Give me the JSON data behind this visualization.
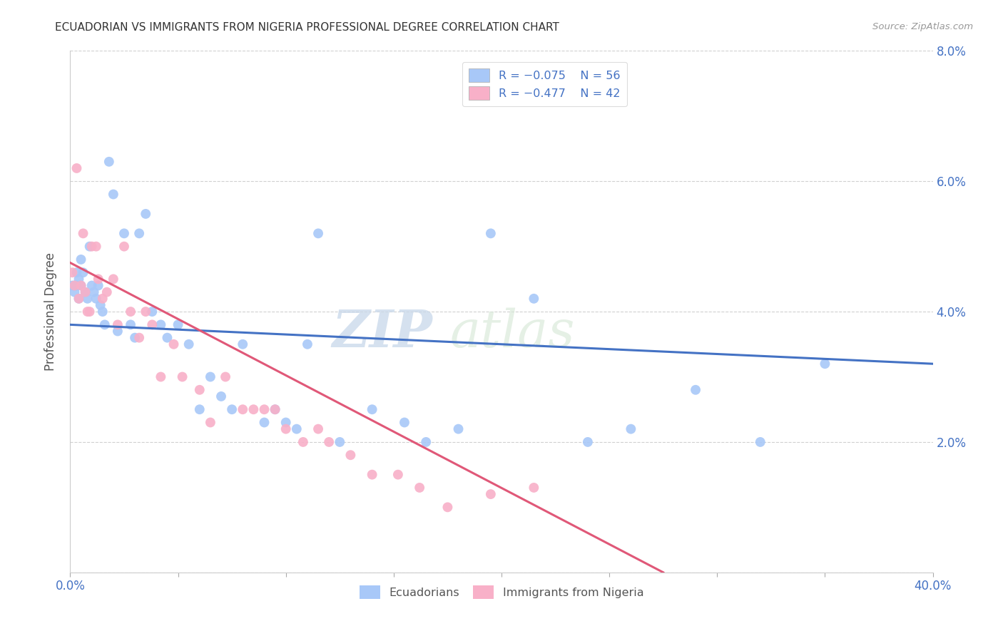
{
  "title": "ECUADORIAN VS IMMIGRANTS FROM NIGERIA PROFESSIONAL DEGREE CORRELATION CHART",
  "source": "Source: ZipAtlas.com",
  "ylabel": "Professional Degree",
  "x_min": 0.0,
  "x_max": 0.4,
  "y_min": 0.0,
  "y_max": 0.08,
  "x_ticks": [
    0.0,
    0.05,
    0.1,
    0.15,
    0.2,
    0.25,
    0.3,
    0.35,
    0.4
  ],
  "y_ticks": [
    0.0,
    0.02,
    0.04,
    0.06,
    0.08
  ],
  "ecuadorians_color": "#a8c8f8",
  "nigeria_color": "#f8b0c8",
  "trendline_blue": "#4472c4",
  "trendline_pink": "#e05878",
  "watermark_zip": "ZIP",
  "watermark_atlas": "atlas",
  "ecuadorians_x": [
    0.001,
    0.002,
    0.002,
    0.003,
    0.003,
    0.004,
    0.004,
    0.005,
    0.005,
    0.006,
    0.007,
    0.008,
    0.009,
    0.01,
    0.011,
    0.012,
    0.013,
    0.014,
    0.015,
    0.016,
    0.018,
    0.02,
    0.022,
    0.025,
    0.028,
    0.03,
    0.032,
    0.035,
    0.038,
    0.042,
    0.045,
    0.05,
    0.055,
    0.06,
    0.065,
    0.07,
    0.075,
    0.08,
    0.09,
    0.095,
    0.1,
    0.105,
    0.11,
    0.115,
    0.125,
    0.14,
    0.155,
    0.165,
    0.18,
    0.195,
    0.215,
    0.24,
    0.26,
    0.29,
    0.32,
    0.35
  ],
  "ecuadorians_y": [
    0.044,
    0.044,
    0.043,
    0.046,
    0.044,
    0.045,
    0.042,
    0.048,
    0.044,
    0.046,
    0.043,
    0.042,
    0.05,
    0.044,
    0.043,
    0.042,
    0.044,
    0.041,
    0.04,
    0.038,
    0.063,
    0.058,
    0.037,
    0.052,
    0.038,
    0.036,
    0.052,
    0.055,
    0.04,
    0.038,
    0.036,
    0.038,
    0.035,
    0.025,
    0.03,
    0.027,
    0.025,
    0.035,
    0.023,
    0.025,
    0.023,
    0.022,
    0.035,
    0.052,
    0.02,
    0.025,
    0.023,
    0.02,
    0.022,
    0.052,
    0.042,
    0.02,
    0.022,
    0.028,
    0.02,
    0.032
  ],
  "nigeria_x": [
    0.001,
    0.002,
    0.003,
    0.004,
    0.005,
    0.006,
    0.007,
    0.008,
    0.009,
    0.01,
    0.012,
    0.013,
    0.015,
    0.017,
    0.02,
    0.022,
    0.025,
    0.028,
    0.032,
    0.035,
    0.038,
    0.042,
    0.048,
    0.052,
    0.06,
    0.065,
    0.072,
    0.08,
    0.085,
    0.09,
    0.095,
    0.1,
    0.108,
    0.115,
    0.12,
    0.13,
    0.14,
    0.152,
    0.162,
    0.175,
    0.195,
    0.215
  ],
  "nigeria_y": [
    0.046,
    0.044,
    0.062,
    0.042,
    0.044,
    0.052,
    0.043,
    0.04,
    0.04,
    0.05,
    0.05,
    0.045,
    0.042,
    0.043,
    0.045,
    0.038,
    0.05,
    0.04,
    0.036,
    0.04,
    0.038,
    0.03,
    0.035,
    0.03,
    0.028,
    0.023,
    0.03,
    0.025,
    0.025,
    0.025,
    0.025,
    0.022,
    0.02,
    0.022,
    0.02,
    0.018,
    0.015,
    0.015,
    0.013,
    0.01,
    0.012,
    0.013
  ],
  "blue_trend_x0": 0.0,
  "blue_trend_y0": 0.038,
  "blue_trend_x1": 0.4,
  "blue_trend_y1": 0.032,
  "pink_trend_x0": 0.0,
  "pink_trend_y0": 0.0475,
  "pink_trend_x1": 0.275,
  "pink_trend_y1": 0.0
}
